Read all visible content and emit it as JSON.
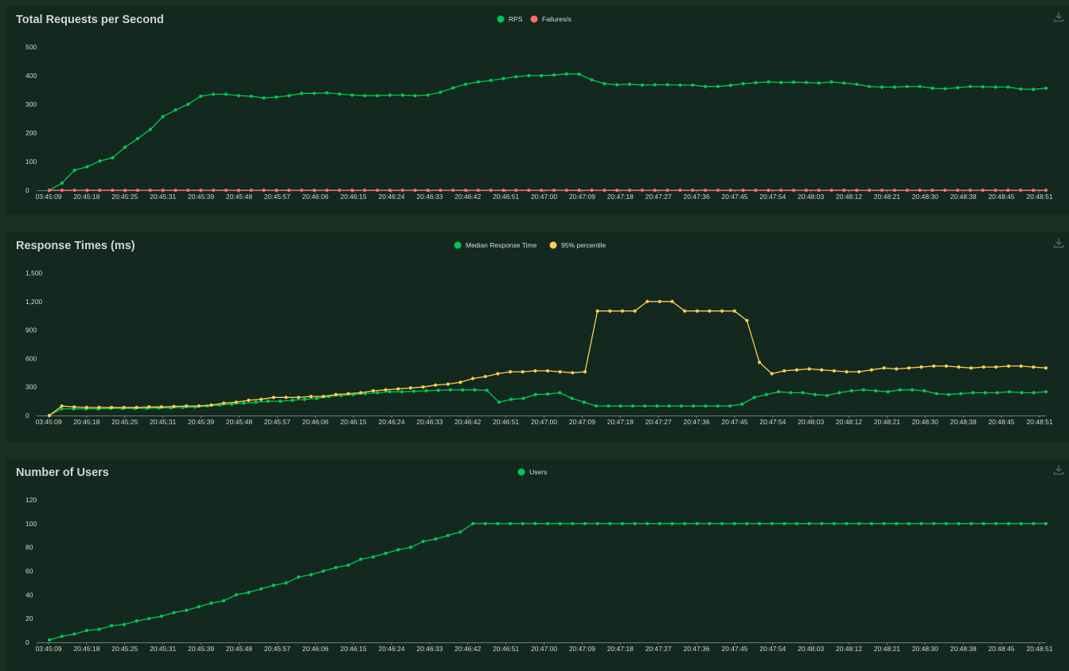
{
  "chart_data": [
    {
      "type": "line",
      "title": "Total Requests per Second",
      "x_labels": [
        "03:45:09",
        "20:45:18",
        "20:45:25",
        "20:45:31",
        "20:45:39",
        "20:45:48",
        "20:45:57",
        "20:46:06",
        "20:46:15",
        "20:46:24",
        "20:46:33",
        "20:46:42",
        "20:46:51",
        "20:47:00",
        "20:47:09",
        "20:47:18",
        "20:47:27",
        "20:47:36",
        "20:47:45",
        "20:47:54",
        "20:48:03",
        "20:48:12",
        "20:48:21",
        "20:48:30",
        "20:48:38",
        "20:48:45",
        "20:48:51"
      ],
      "y_ticks": [
        0,
        100,
        200,
        300,
        400,
        500
      ],
      "y_tick_labels": [
        "0",
        "100",
        "200",
        "300",
        "400",
        "500"
      ],
      "ylim": [
        0,
        500
      ],
      "legend_placement": "top-center",
      "series": [
        {
          "name": "RPS",
          "color": "#00c853",
          "values": [
            0,
            25,
            70,
            82,
            102,
            113,
            150,
            180,
            212,
            257,
            280,
            300,
            328,
            335,
            335,
            330,
            328,
            322,
            325,
            330,
            338,
            338,
            340,
            336,
            332,
            330,
            330,
            332,
            332,
            330,
            332,
            342,
            357,
            370,
            378,
            383,
            390,
            396,
            400,
            400,
            402,
            406,
            405,
            385,
            372,
            368,
            370,
            367,
            368,
            368,
            367,
            367,
            362,
            362,
            366,
            372,
            375,
            378,
            376,
            377,
            376,
            374,
            378,
            374,
            370,
            362,
            360,
            360,
            362,
            362,
            356,
            354,
            358,
            362,
            361,
            360,
            360,
            353,
            352,
            356
          ]
        },
        {
          "name": "Failures/s",
          "color": "#ff6d6d",
          "values": [
            0,
            0,
            0,
            0,
            0,
            0,
            0,
            0,
            0,
            0,
            0,
            0,
            0,
            0,
            0,
            0,
            0,
            0,
            0,
            0,
            0,
            0,
            0,
            0,
            0,
            0,
            0,
            0,
            0,
            0,
            0,
            0,
            0,
            0,
            0,
            0,
            0,
            0,
            0,
            0,
            0,
            0,
            0,
            0,
            0,
            0,
            0,
            0,
            0,
            0,
            0,
            0,
            0,
            0,
            0,
            0,
            0,
            0,
            0,
            0,
            0,
            0,
            0,
            0,
            0,
            0,
            0,
            0,
            0,
            0,
            0,
            0,
            0,
            0,
            0,
            0,
            0,
            0,
            0,
            0
          ]
        }
      ]
    },
    {
      "type": "line",
      "title": "Response Times (ms)",
      "x_labels": [
        "03:45:09",
        "20:45:18",
        "20:45:25",
        "20:45:31",
        "20:45:39",
        "20:45:48",
        "20:45:57",
        "20:46:06",
        "20:46:15",
        "20:46:24",
        "20:46:33",
        "20:46:42",
        "20:46:51",
        "20:47:00",
        "20:47:09",
        "20:47:18",
        "20:47:27",
        "20:47:36",
        "20:47:45",
        "20:47:54",
        "20:48:03",
        "20:48:12",
        "20:48:21",
        "20:48:30",
        "20:48:38",
        "20:48:45",
        "20:48:51"
      ],
      "y_ticks": [
        0,
        300,
        600,
        900,
        1200,
        1500
      ],
      "y_tick_labels": [
        "0",
        "300",
        "600",
        "900",
        "1,200",
        "1,500"
      ],
      "ylim": [
        0,
        1500
      ],
      "legend_placement": "top-center",
      "series": [
        {
          "name": "Median Response Time",
          "color": "#00c853",
          "values": [
            0,
            70,
            70,
            70,
            70,
            75,
            75,
            75,
            75,
            80,
            80,
            85,
            90,
            100,
            110,
            120,
            130,
            140,
            150,
            150,
            160,
            170,
            180,
            200,
            210,
            220,
            230,
            240,
            250,
            250,
            255,
            260,
            265,
            270,
            270,
            270,
            265,
            140,
            170,
            180,
            220,
            225,
            240,
            180,
            140,
            100,
            100,
            100,
            100,
            100,
            100,
            100,
            100,
            100,
            100,
            100,
            100,
            120,
            190,
            220,
            250,
            240,
            240,
            220,
            210,
            240,
            260,
            270,
            260,
            250,
            270,
            270,
            260,
            230,
            220,
            230,
            240,
            240,
            240,
            250,
            240,
            240,
            250
          ]
        },
        {
          "name": "95% percentile",
          "color": "#ffcd4f",
          "values": [
            0,
            100,
            90,
            85,
            85,
            85,
            85,
            85,
            90,
            90,
            95,
            100,
            100,
            110,
            130,
            140,
            160,
            170,
            190,
            190,
            190,
            200,
            200,
            220,
            230,
            240,
            260,
            270,
            280,
            290,
            300,
            320,
            330,
            350,
            390,
            410,
            440,
            460,
            460,
            470,
            470,
            460,
            450,
            460,
            1100,
            1100,
            1100,
            1100,
            1200,
            1200,
            1200,
            1100,
            1100,
            1100,
            1100,
            1100,
            1000,
            560,
            440,
            470,
            480,
            490,
            480,
            470,
            460,
            460,
            480,
            500,
            490,
            500,
            510,
            520,
            520,
            510,
            500,
            510,
            510,
            520,
            520,
            510,
            500
          ]
        }
      ]
    },
    {
      "type": "line",
      "title": "Number of Users",
      "x_labels": [
        "03:45:09",
        "20:45:18",
        "20:45:25",
        "20:45:31",
        "20:45:39",
        "20:45:48",
        "20:45:57",
        "20:46:06",
        "20:46:15",
        "20:46:24",
        "20:46:33",
        "20:46:42",
        "20:46:51",
        "20:47:00",
        "20:47:09",
        "20:47:18",
        "20:47:27",
        "20:47:36",
        "20:47:45",
        "20:47:54",
        "20:48:03",
        "20:48:12",
        "20:48:21",
        "20:48:30",
        "20:48:38",
        "20:48:45",
        "20:48:51"
      ],
      "y_ticks": [
        0,
        20,
        40,
        60,
        80,
        100,
        120
      ],
      "y_tick_labels": [
        "0",
        "20",
        "40",
        "60",
        "80",
        "100",
        "120"
      ],
      "ylim": [
        0,
        120
      ],
      "legend_placement": "top-center",
      "series": [
        {
          "name": "Users",
          "color": "#00c853",
          "values": [
            2,
            5,
            7,
            10,
            11,
            14,
            15,
            18,
            20,
            22,
            25,
            27,
            30,
            33,
            35,
            40,
            42,
            45,
            48,
            50,
            55,
            57,
            60,
            63,
            65,
            70,
            72,
            75,
            78,
            80,
            85,
            87,
            90,
            93,
            100,
            100,
            100,
            100,
            100,
            100,
            100,
            100,
            100,
            100,
            100,
            100,
            100,
            100,
            100,
            100,
            100,
            100,
            100,
            100,
            100,
            100,
            100,
            100,
            100,
            100,
            100,
            100,
            100,
            100,
            100,
            100,
            100,
            100,
            100,
            100,
            100,
            100,
            100,
            100,
            100,
            100,
            100,
            100,
            100,
            100,
            100
          ]
        }
      ]
    }
  ]
}
